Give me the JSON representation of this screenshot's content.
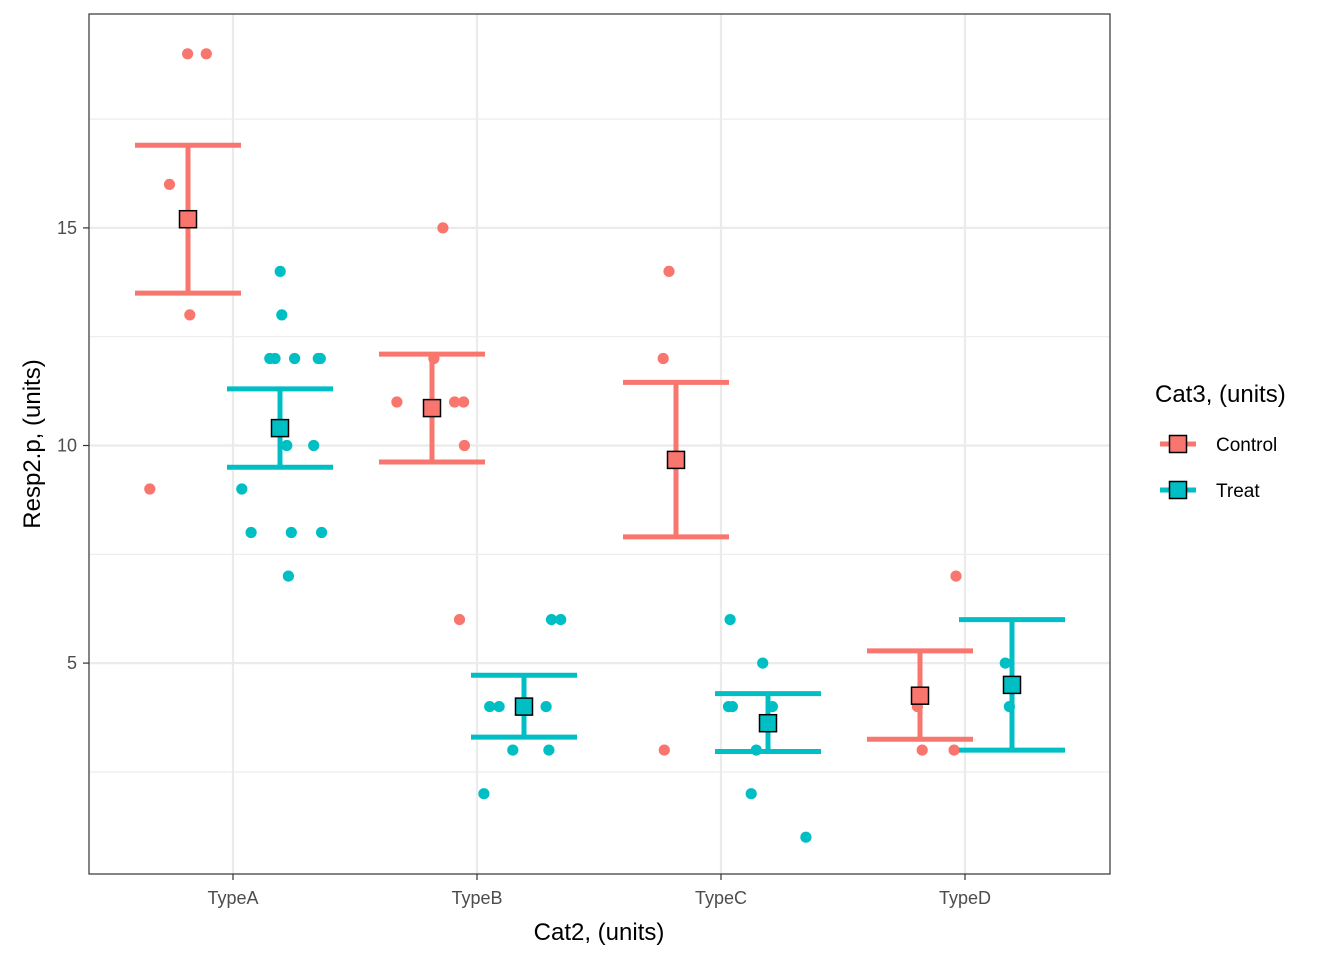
{
  "chart_data": {
    "type": "scatter",
    "xlabel": "Cat2, (units)",
    "ylabel": "Resp2.p, (units)",
    "categories": [
      "TypeA",
      "TypeB",
      "TypeC",
      "TypeD"
    ],
    "y_ticks": [
      5,
      10,
      15
    ],
    "ylim": [
      0.2,
      19.9
    ],
    "grid": true,
    "legend": {
      "title": "Cat3, (units)",
      "position": "right",
      "entries": [
        "Control",
        "Treat"
      ]
    },
    "colors": {
      "Control": "#F8766D",
      "Treat": "#00BFC4"
    },
    "series": [
      {
        "name": "Control",
        "points": [
          {
            "x": "TypeA",
            "y": 19
          },
          {
            "x": "TypeA",
            "y": 19
          },
          {
            "x": "TypeA",
            "y": 16
          },
          {
            "x": "TypeA",
            "y": 13
          },
          {
            "x": "TypeA",
            "y": 9
          },
          {
            "x": "TypeB",
            "y": 15
          },
          {
            "x": "TypeB",
            "y": 12
          },
          {
            "x": "TypeB",
            "y": 11
          },
          {
            "x": "TypeB",
            "y": 11
          },
          {
            "x": "TypeB",
            "y": 11
          },
          {
            "x": "TypeB",
            "y": 10
          },
          {
            "x": "TypeB",
            "y": 6
          },
          {
            "x": "TypeC",
            "y": 14
          },
          {
            "x": "TypeC",
            "y": 12
          },
          {
            "x": "TypeC",
            "y": 3
          },
          {
            "x": "TypeD",
            "y": 7
          },
          {
            "x": "TypeD",
            "y": 4
          },
          {
            "x": "TypeD",
            "y": 3
          },
          {
            "x": "TypeD",
            "y": 3
          }
        ],
        "summary": [
          {
            "x": "TypeA",
            "mean": 15.2,
            "lower": 13.5,
            "upper": 16.9
          },
          {
            "x": "TypeB",
            "mean": 10.86,
            "lower": 9.62,
            "upper": 12.1
          },
          {
            "x": "TypeC",
            "mean": 9.67,
            "lower": 7.9,
            "upper": 11.45
          },
          {
            "x": "TypeD",
            "mean": 4.25,
            "lower": 3.25,
            "upper": 5.28
          }
        ]
      },
      {
        "name": "Treat",
        "points": [
          {
            "x": "TypeA",
            "y": 14
          },
          {
            "x": "TypeA",
            "y": 13
          },
          {
            "x": "TypeA",
            "y": 12
          },
          {
            "x": "TypeA",
            "y": 12
          },
          {
            "x": "TypeA",
            "y": 12
          },
          {
            "x": "TypeA",
            "y": 12
          },
          {
            "x": "TypeA",
            "y": 12
          },
          {
            "x": "TypeA",
            "y": 10
          },
          {
            "x": "TypeA",
            "y": 10
          },
          {
            "x": "TypeA",
            "y": 9
          },
          {
            "x": "TypeA",
            "y": 8
          },
          {
            "x": "TypeA",
            "y": 8
          },
          {
            "x": "TypeA",
            "y": 8
          },
          {
            "x": "TypeA",
            "y": 7
          },
          {
            "x": "TypeB",
            "y": 6
          },
          {
            "x": "TypeB",
            "y": 6
          },
          {
            "x": "TypeB",
            "y": 4
          },
          {
            "x": "TypeB",
            "y": 4
          },
          {
            "x": "TypeB",
            "y": 4
          },
          {
            "x": "TypeB",
            "y": 3
          },
          {
            "x": "TypeB",
            "y": 3
          },
          {
            "x": "TypeB",
            "y": 2
          },
          {
            "x": "TypeC",
            "y": 6
          },
          {
            "x": "TypeC",
            "y": 5
          },
          {
            "x": "TypeC",
            "y": 4
          },
          {
            "x": "TypeC",
            "y": 4
          },
          {
            "x": "TypeC",
            "y": 4
          },
          {
            "x": "TypeC",
            "y": 3
          },
          {
            "x": "TypeC",
            "y": 2
          },
          {
            "x": "TypeC",
            "y": 1
          },
          {
            "x": "TypeD",
            "y": 5
          },
          {
            "x": "TypeD",
            "y": 4
          }
        ],
        "summary": [
          {
            "x": "TypeA",
            "mean": 10.4,
            "lower": 9.5,
            "upper": 11.3
          },
          {
            "x": "TypeB",
            "mean": 4.0,
            "lower": 3.3,
            "upper": 4.72
          },
          {
            "x": "TypeC",
            "mean": 3.62,
            "lower": 2.97,
            "upper": 4.3
          },
          {
            "x": "TypeD",
            "mean": 4.5,
            "lower": 3.0,
            "upper": 6.0
          }
        ]
      }
    ]
  }
}
